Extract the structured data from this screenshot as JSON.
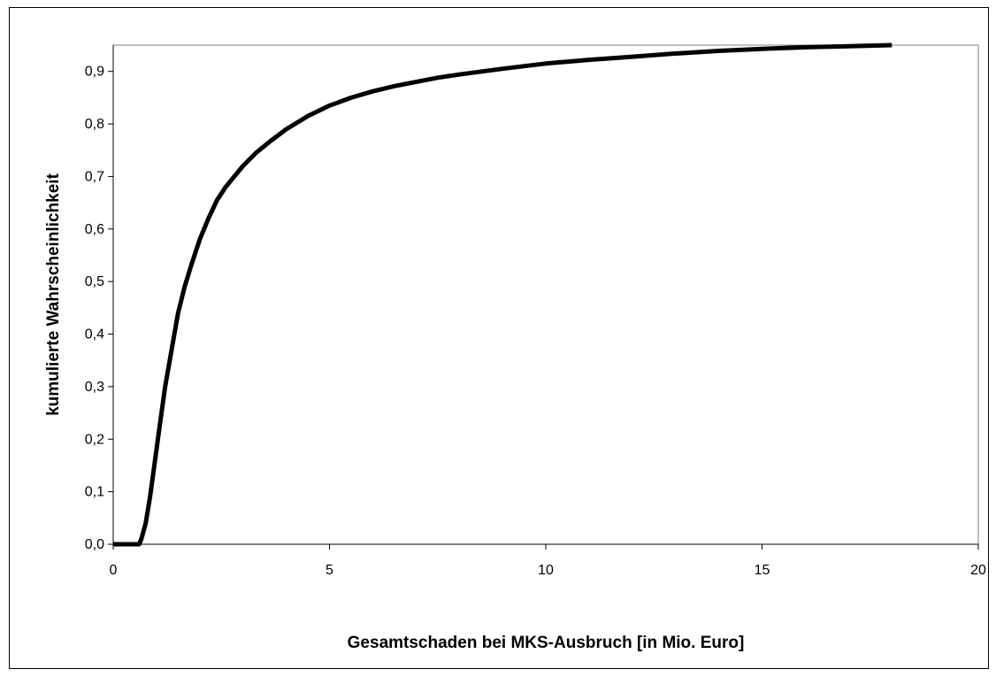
{
  "chart_data": {
    "type": "line",
    "title": "",
    "xlabel": "Gesamtschaden bei MKS-Ausbruch [in Mio. Euro]",
    "ylabel": "kumulierte Wahrscheinlichkeit",
    "xlim": [
      0,
      20
    ],
    "ylim": [
      0,
      0.95
    ],
    "x_ticks": [
      0,
      5,
      10,
      15,
      20
    ],
    "x_tick_labels": [
      "0",
      "5",
      "10",
      "15",
      "20"
    ],
    "y_ticks": [
      0,
      0.1,
      0.2,
      0.3,
      0.4,
      0.5,
      0.6,
      0.7,
      0.8,
      0.9
    ],
    "y_tick_labels": [
      "0,0",
      "0,1",
      "0,2",
      "0,3",
      "0,4",
      "0,5",
      "0,6",
      "0,7",
      "0,8",
      "0,9"
    ],
    "grid": false,
    "legend": "none",
    "line_color": "#000000",
    "series": [
      {
        "x": [
          0,
          0.6,
          0.65,
          0.75,
          0.85,
          0.95,
          1.05,
          1.2,
          1.35,
          1.5,
          1.65,
          1.8,
          2.0,
          2.2,
          2.4,
          2.6,
          2.8,
          3.0,
          3.3,
          3.6,
          4.0,
          4.5,
          5.0,
          5.5,
          6.0,
          6.5,
          7.0,
          7.5,
          8.0,
          9.0,
          10.0,
          11.0,
          12.0,
          13.0,
          14.0,
          15.0,
          16.0,
          17.0,
          18.0
        ],
        "y": [
          0.0,
          0.0,
          0.01,
          0.04,
          0.09,
          0.15,
          0.21,
          0.3,
          0.37,
          0.44,
          0.49,
          0.53,
          0.58,
          0.62,
          0.655,
          0.68,
          0.7,
          0.72,
          0.745,
          0.765,
          0.79,
          0.815,
          0.835,
          0.85,
          0.862,
          0.872,
          0.88,
          0.888,
          0.894,
          0.905,
          0.915,
          0.922,
          0.928,
          0.934,
          0.939,
          0.943,
          0.946,
          0.948,
          0.95
        ]
      }
    ]
  }
}
